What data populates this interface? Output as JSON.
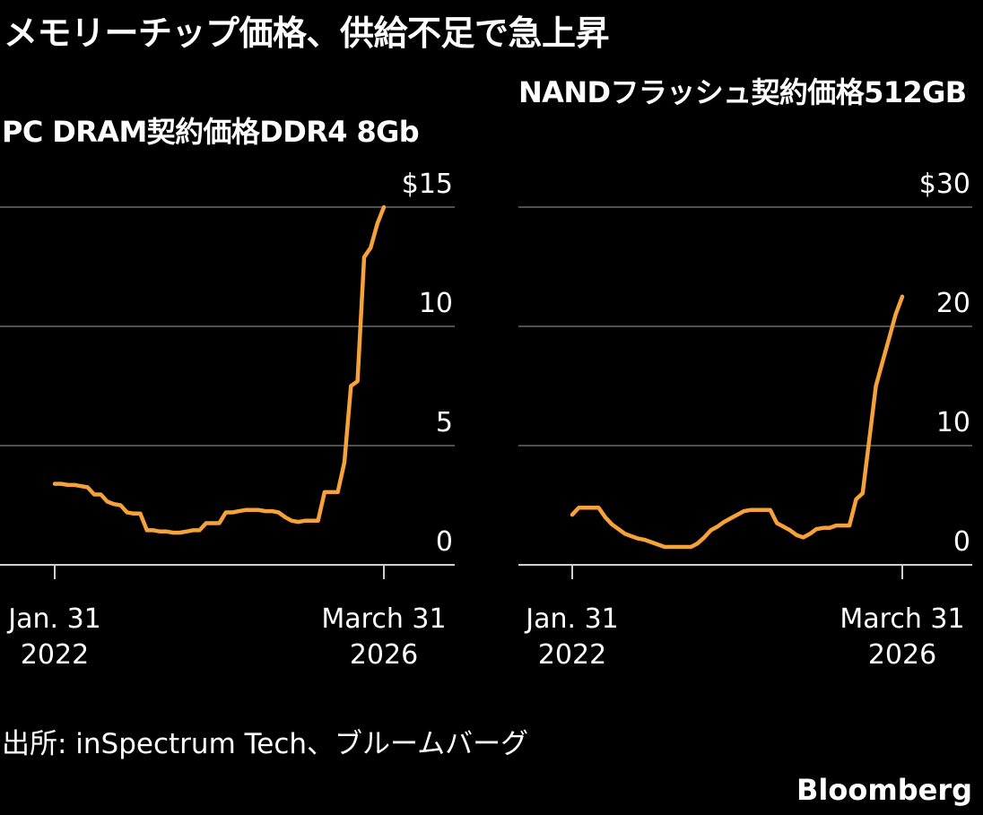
{
  "headline": "メモリーチップ価格、供給不足で急上昇",
  "source": "出所: inSpectrum Tech、ブルームバーグ",
  "brand": "Bloomberg",
  "colors": {
    "line": "#f7a13a",
    "background": "#000000",
    "grid": "#6a6a6a",
    "text": "#ffffff"
  },
  "chart_data": [
    {
      "type": "line",
      "title": "PC DRAM契約価格DDR4 8Gb",
      "ylim": [
        0,
        15
      ],
      "yticks": [
        0,
        5,
        10,
        15
      ],
      "ytick_labels": [
        "0",
        "5",
        "10",
        "$15"
      ],
      "xtick_labels": [
        [
          "Jan. 31",
          "2022"
        ],
        [
          "March 31",
          "2026"
        ]
      ],
      "grid": true,
      "series": [
        {
          "x": [
            "2022-01",
            "2022-02",
            "2022-03",
            "2022-04",
            "2022-05",
            "2022-06",
            "2022-07",
            "2022-08",
            "2022-09",
            "2022-10",
            "2022-11",
            "2022-12",
            "2023-01",
            "2023-02",
            "2023-03",
            "2023-04",
            "2023-05",
            "2023-06",
            "2023-07",
            "2023-08",
            "2023-09",
            "2023-10",
            "2023-11",
            "2023-12",
            "2024-01",
            "2024-02",
            "2024-03",
            "2024-04",
            "2024-05",
            "2024-06",
            "2024-07",
            "2024-08",
            "2024-09",
            "2024-10",
            "2024-11",
            "2024-12",
            "2025-01",
            "2025-02",
            "2025-03",
            "2025-04",
            "2025-05",
            "2025-06",
            "2025-07",
            "2025-08",
            "2025-09",
            "2025-10",
            "2025-11",
            "2025-12",
            "2026-01",
            "2026-02",
            "2026-03"
          ],
          "values": [
            3.4,
            3.4,
            3.35,
            3.35,
            3.3,
            3.25,
            2.95,
            2.95,
            2.65,
            2.55,
            2.5,
            2.2,
            2.15,
            2.15,
            1.45,
            1.45,
            1.4,
            1.4,
            1.35,
            1.35,
            1.4,
            1.45,
            1.45,
            1.75,
            1.75,
            1.75,
            2.2,
            2.2,
            2.25,
            2.3,
            2.3,
            2.3,
            2.25,
            2.25,
            2.2,
            2.0,
            1.85,
            1.8,
            1.85,
            1.85,
            1.85,
            3.05,
            3.05,
            3.05,
            4.3,
            7.5,
            7.7,
            12.9,
            13.3,
            14.3,
            15.0
          ]
        }
      ]
    },
    {
      "type": "line",
      "title": "NANDフラッシュ契約価格512GB",
      "ylim": [
        0,
        30
      ],
      "yticks": [
        0,
        10,
        20,
        30
      ],
      "ytick_labels": [
        "0",
        "10",
        "20",
        "$30"
      ],
      "xtick_labels": [
        [
          "Jan. 31",
          "2022"
        ],
        [
          "March 31",
          "2026"
        ]
      ],
      "grid": true,
      "series": [
        {
          "x": [
            "2022-01",
            "2022-02",
            "2022-03",
            "2022-04",
            "2022-05",
            "2022-06",
            "2022-07",
            "2022-08",
            "2022-09",
            "2022-10",
            "2022-11",
            "2022-12",
            "2023-01",
            "2023-02",
            "2023-03",
            "2023-04",
            "2023-05",
            "2023-06",
            "2023-07",
            "2023-08",
            "2023-09",
            "2023-10",
            "2023-11",
            "2023-12",
            "2024-01",
            "2024-02",
            "2024-03",
            "2024-04",
            "2024-05",
            "2024-06",
            "2024-07",
            "2024-08",
            "2024-09",
            "2024-10",
            "2024-11",
            "2024-12",
            "2025-01",
            "2025-02",
            "2025-03",
            "2025-04",
            "2025-05",
            "2025-06",
            "2025-07",
            "2025-08",
            "2025-09",
            "2025-10",
            "2025-11",
            "2025-12",
            "2026-01",
            "2026-02",
            "2026-03"
          ],
          "values": [
            4.2,
            4.8,
            4.8,
            4.8,
            4.8,
            4.0,
            3.4,
            3.0,
            2.6,
            2.4,
            2.2,
            2.1,
            1.9,
            1.7,
            1.5,
            1.5,
            1.5,
            1.5,
            1.5,
            1.8,
            2.3,
            2.9,
            3.2,
            3.6,
            3.9,
            4.2,
            4.5,
            4.6,
            4.6,
            4.6,
            4.6,
            3.5,
            3.2,
            2.9,
            2.5,
            2.3,
            2.6,
            3.0,
            3.1,
            3.1,
            3.3,
            3.3,
            3.3,
            5.5,
            6.0,
            10.5,
            15.0,
            17.0,
            19.0,
            21.0,
            22.5
          ]
        }
      ]
    }
  ]
}
